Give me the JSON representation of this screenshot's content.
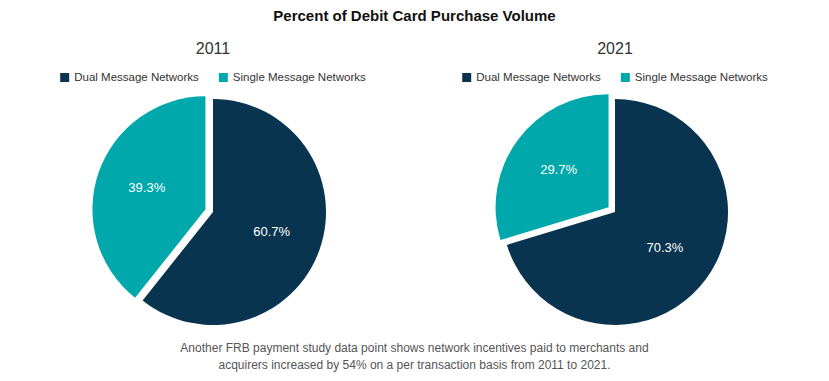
{
  "title": "Percent of Debit Card Purchase Volume",
  "note": [
    "Another FRB payment study data point shows network incentives paid to merchants and",
    "acquirers increased by 54% on a per transaction basis from 2011 to 2021."
  ],
  "chart_data": [
    {
      "type": "pie",
      "title": "2011",
      "categories": [
        "Dual Message Networks",
        "Single Message Networks"
      ],
      "values": [
        60.7,
        39.3
      ],
      "value_labels": [
        "60.7%",
        "39.3%"
      ],
      "colors": [
        "#08344f",
        "#00a8ac"
      ],
      "data_labels": true,
      "legend": "top"
    },
    {
      "type": "pie",
      "title": "2021",
      "categories": [
        "Dual Message Networks",
        "Single Message Networks"
      ],
      "values": [
        70.3,
        29.7
      ],
      "value_labels": [
        "70.3%",
        "29.7%"
      ],
      "colors": [
        "#08344f",
        "#00a8ac"
      ],
      "data_labels": true,
      "legend": "top"
    }
  ]
}
